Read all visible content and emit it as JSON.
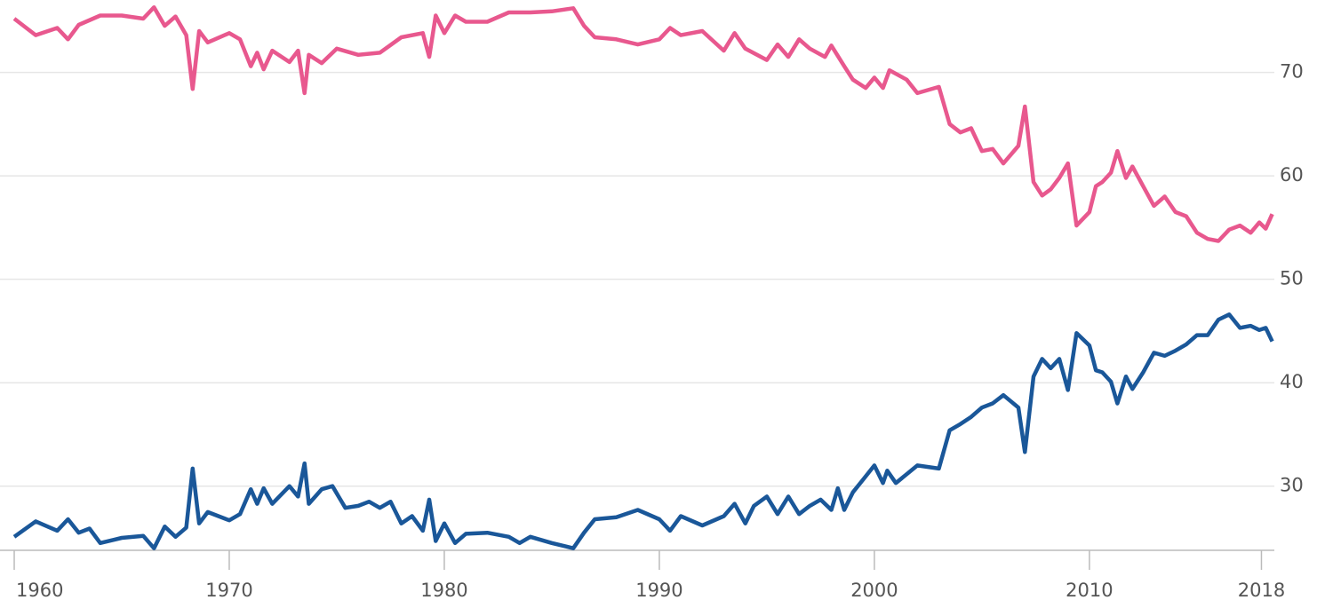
{
  "chart_data": {
    "type": "line",
    "xlim": [
      1960,
      2018.6
    ],
    "xticks": [
      1960,
      1970,
      1980,
      1990,
      2000,
      2010,
      2018
    ],
    "ylim": [
      23.8,
      77
    ],
    "yticks": [
      30,
      40,
      50,
      60,
      70
    ],
    "grid": true,
    "series": [
      {
        "color": "#e8588e",
        "x": [
          1960,
          1961,
          1962,
          1962.5,
          1963,
          1964,
          1965,
          1966,
          1966.5,
          1967,
          1967.5,
          1968,
          1968.3,
          1968.6,
          1969,
          1970,
          1970.5,
          1971,
          1971.3,
          1971.6,
          1972,
          1972.8,
          1973.2,
          1973.5,
          1973.7,
          1974.3,
          1975,
          1976,
          1977,
          1978,
          1979,
          1979.3,
          1979.6,
          1980,
          1980.5,
          1981,
          1982,
          1983,
          1984,
          1985,
          1986,
          1986.5,
          1987,
          1988,
          1989,
          1990,
          1990.5,
          1991,
          1992,
          1993,
          1993.5,
          1994,
          1995,
          1995.5,
          1996,
          1996.5,
          1997,
          1997.7,
          1998,
          1998.6,
          1999,
          1999.6,
          2000,
          2000.4,
          2000.7,
          2001.5,
          2002,
          2003,
          2003.5,
          2004,
          2004.5,
          2005,
          2005.5,
          2006,
          2006.7,
          2007,
          2007.4,
          2007.8,
          2008.2,
          2008.6,
          2009,
          2009.4,
          2010,
          2010.3,
          2010.6,
          2011,
          2011.3,
          2011.7,
          2012,
          2012.5,
          2013,
          2013.5,
          2014,
          2014.5,
          2015,
          2015.5,
          2016,
          2016.5,
          2017,
          2017.5,
          2017.9,
          2018.2,
          2018.5
        ],
        "values": [
          75.2,
          73.6,
          74.3,
          73.2,
          74.6,
          75.5,
          75.5,
          75.2,
          76.3,
          74.5,
          75.4,
          73.6,
          68.4,
          74.0,
          72.9,
          73.8,
          73.2,
          70.6,
          71.9,
          70.3,
          72.1,
          71.0,
          72.1,
          68.0,
          71.7,
          70.9,
          72.3,
          71.7,
          71.9,
          73.4,
          73.8,
          71.5,
          75.5,
          73.8,
          75.5,
          74.9,
          74.9,
          75.8,
          75.8,
          75.9,
          76.2,
          74.5,
          73.4,
          73.2,
          72.7,
          73.2,
          74.3,
          73.6,
          74.0,
          72.1,
          73.8,
          72.3,
          71.2,
          72.7,
          71.5,
          73.2,
          72.3,
          71.5,
          72.6,
          70.6,
          69.3,
          68.5,
          69.5,
          68.5,
          70.2,
          69.3,
          68.0,
          68.6,
          65.0,
          64.2,
          64.6,
          62.4,
          62.6,
          61.2,
          62.9,
          66.7,
          59.4,
          58.1,
          58.7,
          59.8,
          61.2,
          55.2,
          56.5,
          59.0,
          59.4,
          60.3,
          62.4,
          59.8,
          60.9,
          59.0,
          57.1,
          58.0,
          56.5,
          56.1,
          54.5,
          53.9,
          53.7,
          54.8,
          55.2,
          54.5,
          55.5,
          54.9,
          56.3
        ]
      },
      {
        "color": "#1a5799",
        "x": [
          1960,
          1961,
          1962,
          1962.5,
          1963,
          1963.5,
          1964,
          1965,
          1966,
          1966.5,
          1967,
          1967.5,
          1968,
          1968.3,
          1968.6,
          1969,
          1970,
          1970.5,
          1971,
          1971.3,
          1971.6,
          1972,
          1972.8,
          1973.2,
          1973.5,
          1973.7,
          1974.3,
          1974.8,
          1975.4,
          1976,
          1976.5,
          1977,
          1977.5,
          1978,
          1978.5,
          1979,
          1979.3,
          1979.6,
          1980,
          1980.5,
          1981,
          1982,
          1983,
          1983.5,
          1984,
          1985,
          1986,
          1986.5,
          1987,
          1988,
          1989,
          1990,
          1990.5,
          1991,
          1992,
          1993,
          1993.5,
          1994,
          1994.4,
          1995,
          1995.5,
          1996,
          1996.5,
          1997,
          1997.5,
          1998,
          1998.3,
          1998.6,
          1999,
          1999.5,
          2000,
          2000.4,
          2000.6,
          2001,
          2002,
          2003,
          2003.5,
          2004,
          2004.5,
          2005,
          2005.5,
          2006,
          2006.7,
          2007,
          2007.4,
          2007.8,
          2008.2,
          2008.6,
          2009,
          2009.4,
          2010,
          2010.3,
          2010.6,
          2011,
          2011.3,
          2011.7,
          2012,
          2012.5,
          2013,
          2013.5,
          2014,
          2014.5,
          2015,
          2015.5,
          2016,
          2016.5,
          2017,
          2017.5,
          2017.9,
          2018.2,
          2018.5
        ],
        "values": [
          25.1,
          26.6,
          25.7,
          26.8,
          25.5,
          25.9,
          24.5,
          25.0,
          25.2,
          24.0,
          26.1,
          25.1,
          26.0,
          31.7,
          26.4,
          27.5,
          26.7,
          27.3,
          29.7,
          28.3,
          29.8,
          28.3,
          30.0,
          29.0,
          32.2,
          28.3,
          29.7,
          30.0,
          27.9,
          28.1,
          28.5,
          27.9,
          28.5,
          26.4,
          27.1,
          25.7,
          28.7,
          24.7,
          26.4,
          24.5,
          25.4,
          25.5,
          25.1,
          24.5,
          25.1,
          24.5,
          24.0,
          25.5,
          26.8,
          27.0,
          27.7,
          26.8,
          25.7,
          27.1,
          26.2,
          27.1,
          28.3,
          26.4,
          28.1,
          29.0,
          27.3,
          29.0,
          27.3,
          28.1,
          28.7,
          27.7,
          29.8,
          27.7,
          29.4,
          30.7,
          32.0,
          30.3,
          31.5,
          30.3,
          32.0,
          31.7,
          35.4,
          36.0,
          36.7,
          37.6,
          38.0,
          38.8,
          37.6,
          33.3,
          40.6,
          42.3,
          41.4,
          42.3,
          39.3,
          44.8,
          43.6,
          41.2,
          41.0,
          40.1,
          38.0,
          40.6,
          39.4,
          41.0,
          42.9,
          42.6,
          43.1,
          43.7,
          44.6,
          44.6,
          46.1,
          46.6,
          45.3,
          45.5,
          45.1,
          45.3,
          44.0
        ]
      }
    ]
  }
}
